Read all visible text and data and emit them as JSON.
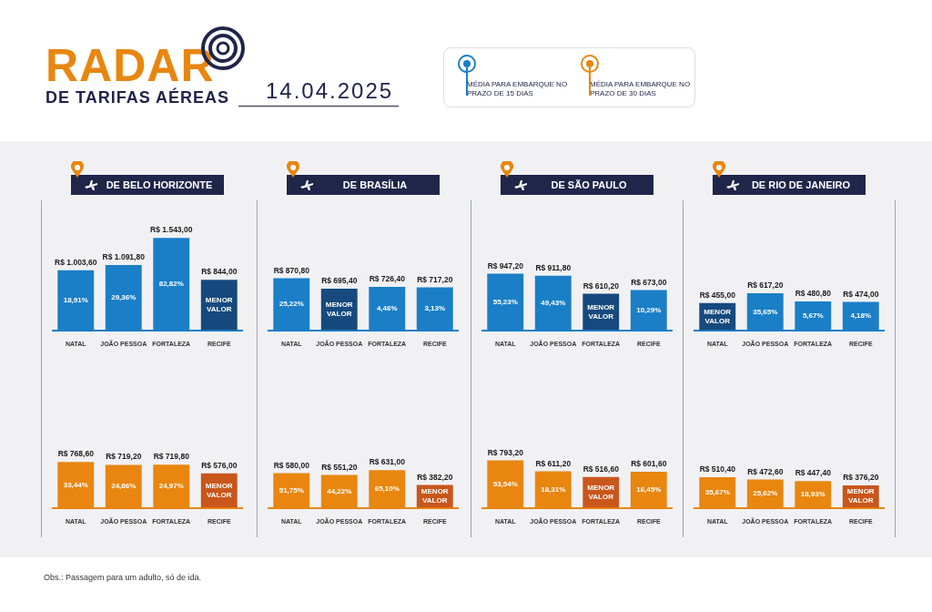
{
  "chart_data": [
    {
      "type": "other",
      "title": "RADAR DE TARIFAS AÉREAS",
      "subtitle": "14.04.2025",
      "annotations": [
        "MÉDIA PARA EMBARQUE NO PRAZO DE 15 DIAS",
        "MÉDIA PARA EMBARQUE NO PRAZO DE 30 DIAS",
        "Obs.: Passagem para um adulto, só de ida."
      ]
    },
    {
      "type": "bar",
      "title": "DE BELO HORIZONTE",
      "categories": [
        "NATAL",
        "JOÃO PESSOA",
        "FORTALEZA",
        "RECIFE"
      ],
      "values": [
        1003.6,
        1091.8,
        1543.0,
        844.0
      ],
      "colors": [
        "#1a7fc7",
        "#1a7fc7",
        "#1a7fc7",
        "#164a7e"
      ],
      "value_labels": [
        "R$ 1.003,60",
        "R$ 1.091,80",
        "R$ 1.543,00",
        "R$ 844,00"
      ],
      "tick_labels": "x",
      "annotations": [
        "18,91%",
        "29,36%",
        "82,82%",
        "MENOR VALOR"
      ]
    },
    {
      "type": "bar",
      "title": "DE BRASÍLIA",
      "categories": [
        "NATAL",
        "JOÃO PESSOA",
        "FORTALEZA",
        "RECIFE"
      ],
      "values": [
        870.8,
        695.4,
        726.4,
        717.2
      ],
      "colors": [
        "#1a7fc7",
        "#164a7e",
        "#1a7fc7",
        "#1a7fc7"
      ],
      "value_labels": [
        "R$ 870,80",
        "R$ 695,40",
        "R$ 726,40",
        "R$ 717,20"
      ],
      "tick_labels": "x",
      "annotations": [
        "25,22%",
        "MENOR VALOR",
        "4,46%",
        "3,13%"
      ]
    },
    {
      "type": "bar",
      "title": "DE SÃO PAULO",
      "categories": [
        "NATAL",
        "JOÃO PESSOA",
        "FORTALEZA",
        "RECIFE"
      ],
      "values": [
        947.2,
        911.8,
        610.2,
        673.0
      ],
      "colors": [
        "#1a7fc7",
        "#1a7fc7",
        "#164a7e",
        "#1a7fc7"
      ],
      "value_labels": [
        "R$ 947,20",
        "R$ 911,80",
        "R$ 610,20",
        "R$ 673,00"
      ],
      "tick_labels": "x",
      "annotations": [
        "55,23%",
        "49,43%",
        "MENOR VALOR",
        "10,29%"
      ]
    },
    {
      "type": "bar",
      "title": "DE RIO DE JANEIRO",
      "categories": [
        "NATAL",
        "JOÃO PESSOA",
        "FORTALEZA",
        "RECIFE"
      ],
      "values": [
        455.0,
        617.2,
        480.8,
        474.0
      ],
      "colors": [
        "#164a7e",
        "#1a7fc7",
        "#1a7fc7",
        "#1a7fc7"
      ],
      "value_labels": [
        "R$ 455,00",
        "R$ 617,20",
        "R$ 480,80",
        "R$ 474,00"
      ],
      "tick_labels": "x",
      "annotations": [
        "MENOR VALOR",
        "35,65%",
        "5,67%",
        "4,18%"
      ]
    },
    {
      "type": "bar",
      "categories": [
        "NATAL",
        "JOÃO PESSOA",
        "FORTALEZA",
        "RECIFE"
      ],
      "values": [
        768.6,
        719.2,
        719.8,
        576.0
      ],
      "colors": [
        "#e8860f",
        "#e8860f",
        "#e8860f",
        "#c9561b"
      ],
      "value_labels": [
        "R$ 768,60",
        "R$ 719,20",
        "R$ 719,80",
        "R$ 576,00"
      ],
      "tick_labels": "x",
      "annotations": [
        "33,44%",
        "24,86%",
        "24,97%",
        "MENOR VALOR"
      ]
    },
    {
      "type": "bar",
      "categories": [
        "NATAL",
        "JOÃO PESSOA",
        "FORTALEZA",
        "RECIFE"
      ],
      "values": [
        580.0,
        551.2,
        631.0,
        382.2
      ],
      "colors": [
        "#e8860f",
        "#e8860f",
        "#e8860f",
        "#c9561b"
      ],
      "value_labels": [
        "R$ 580,00",
        "R$ 551,20",
        "R$ 631,00",
        "R$ 382,20"
      ],
      "tick_labels": "x",
      "annotations": [
        "51,75%",
        "44,22%",
        "65,10%",
        "MENOR VALOR"
      ]
    },
    {
      "type": "bar",
      "categories": [
        "NATAL",
        "JOÃO PESSOA",
        "FORTALEZA",
        "RECIFE"
      ],
      "values": [
        793.2,
        611.2,
        516.6,
        601.6
      ],
      "colors": [
        "#e8860f",
        "#e8860f",
        "#c9561b",
        "#e8860f"
      ],
      "value_labels": [
        "R$ 793,20",
        "R$ 611,20",
        "R$ 516,60",
        "R$ 601,60"
      ],
      "tick_labels": "x",
      "annotations": [
        "53,54%",
        "18,31%",
        "MENOR VALOR",
        "16,45%"
      ]
    },
    {
      "type": "bar",
      "categories": [
        "NATAL",
        "JOÃO PESSOA",
        "FORTALEZA",
        "RECIFE"
      ],
      "values": [
        510.4,
        472.6,
        447.4,
        376.2
      ],
      "colors": [
        "#e8860f",
        "#e8860f",
        "#e8860f",
        "#c9561b"
      ],
      "value_labels": [
        "R$ 510,40",
        "R$ 472,60",
        "R$ 447,40",
        "R$ 376,20"
      ],
      "tick_labels": "x",
      "annotations": [
        "35,67%",
        "25,62%",
        "18,93%",
        "MENOR VALOR"
      ]
    }
  ]
}
